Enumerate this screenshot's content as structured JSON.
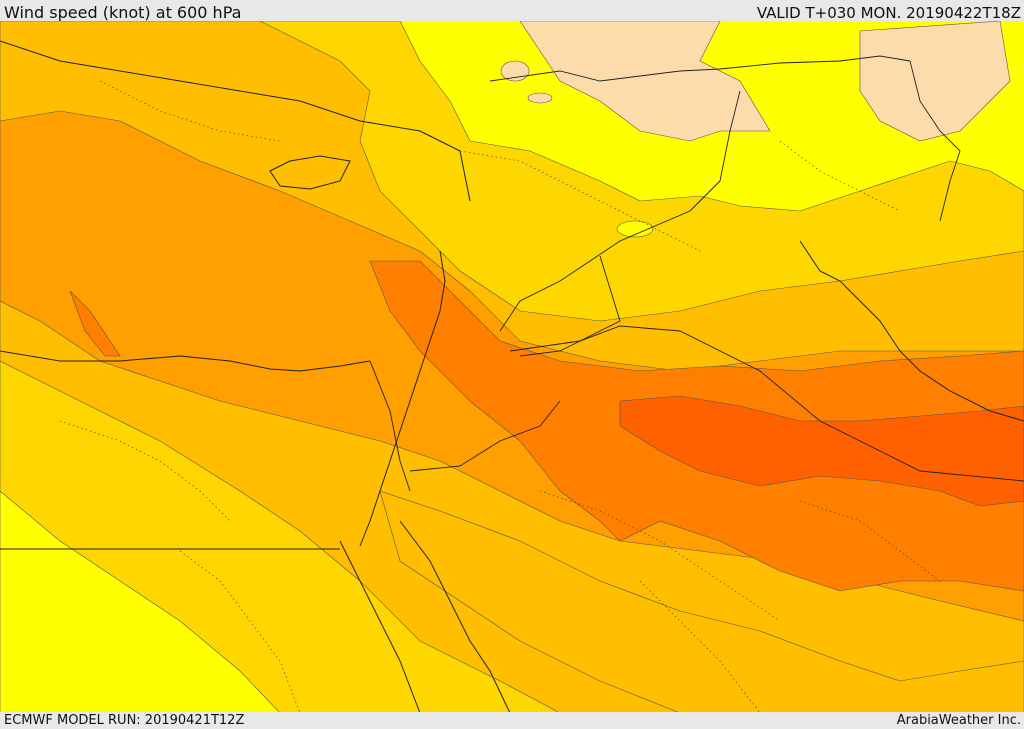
{
  "header": {
    "title": "Wind speed (knot) at 600 hPa",
    "valid": "VALID T+030 MON. 20190422T18Z"
  },
  "footer": {
    "model_run": "ECMWF MODEL RUN: 20190421T12Z",
    "credit": "ArabiaWeather Inc."
  },
  "map": {
    "palette": {
      "lightest": "#fcdcaa",
      "yellow": "#ffff00",
      "gold": "#ffd700",
      "amber": "#ffbf00",
      "orange": "#ff9f00",
      "deep_orange": "#ff8000",
      "red_orange": "#ff6000"
    }
  }
}
